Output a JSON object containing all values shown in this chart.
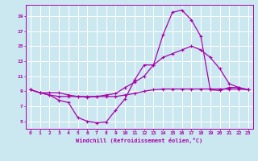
{
  "xlabel": "Windchill (Refroidissement éolien,°C)",
  "background_color": "#cbe8f0",
  "grid_color": "#ffffff",
  "line_color": "#aa00aa",
  "xlim": [
    -0.5,
    23.5
  ],
  "ylim": [
    4,
    20.5
  ],
  "yticks": [
    5,
    7,
    9,
    11,
    13,
    15,
    17,
    19
  ],
  "xticks": [
    0,
    1,
    2,
    3,
    4,
    5,
    6,
    7,
    8,
    9,
    10,
    11,
    12,
    13,
    14,
    15,
    16,
    17,
    18,
    19,
    20,
    21,
    22,
    23
  ],
  "line1_x": [
    0,
    1,
    2,
    3,
    4,
    5,
    6,
    7,
    8,
    9,
    10,
    11,
    12,
    13,
    14,
    15,
    16,
    17,
    18,
    19,
    20,
    21,
    22,
    23
  ],
  "line1_y": [
    9.2,
    8.8,
    8.8,
    8.8,
    8.5,
    8.3,
    8.2,
    8.3,
    8.5,
    8.7,
    9.5,
    10.2,
    11.0,
    12.5,
    13.5,
    14.0,
    14.5,
    15.0,
    14.5,
    13.5,
    12.0,
    10.0,
    9.5,
    9.2
  ],
  "line2_x": [
    0,
    1,
    2,
    3,
    4,
    5,
    6,
    7,
    8,
    9,
    10,
    11,
    12,
    13,
    14,
    15,
    16,
    17,
    18,
    19,
    20,
    21,
    22,
    23
  ],
  "line2_y": [
    9.2,
    8.8,
    8.5,
    7.8,
    7.5,
    5.5,
    5.0,
    4.8,
    4.9,
    6.5,
    8.0,
    10.5,
    12.5,
    12.5,
    16.5,
    19.5,
    19.8,
    18.5,
    16.3,
    9.2,
    9.1,
    9.5,
    9.5,
    9.2
  ],
  "line3_x": [
    0,
    1,
    2,
    3,
    4,
    5,
    6,
    7,
    8,
    9,
    10,
    11,
    12,
    13,
    14,
    15,
    16,
    17,
    18,
    19,
    20,
    21,
    22,
    23
  ],
  "line3_y": [
    9.2,
    8.8,
    8.5,
    8.3,
    8.3,
    8.3,
    8.3,
    8.3,
    8.3,
    8.3,
    8.5,
    8.7,
    9.0,
    9.2,
    9.3,
    9.3,
    9.3,
    9.3,
    9.3,
    9.3,
    9.3,
    9.3,
    9.3,
    9.2
  ]
}
